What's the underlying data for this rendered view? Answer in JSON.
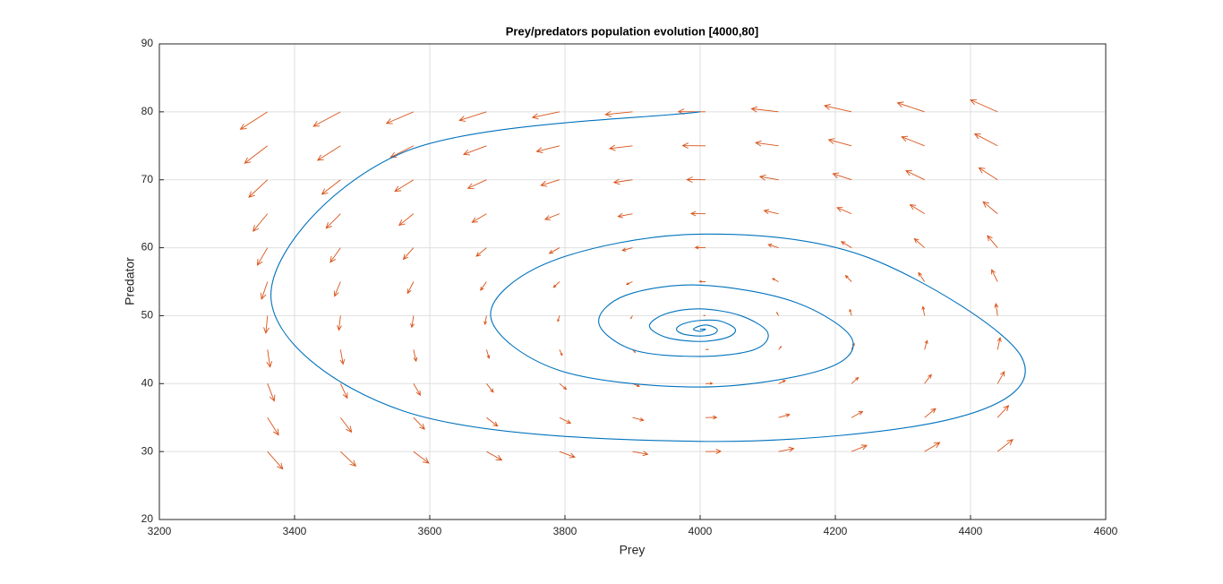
{
  "chart_data": {
    "type": "phase",
    "title": "Prey/predators population evolution [4000,80]",
    "xlabel": "Prey",
    "ylabel": "Predator",
    "xlim": [
      3200,
      4600
    ],
    "ylim": [
      20,
      90
    ],
    "xticks": [
      3200,
      3400,
      3600,
      3800,
      4000,
      4200,
      4400,
      4600
    ],
    "yticks": [
      20,
      30,
      40,
      50,
      60,
      70,
      80,
      90
    ],
    "grid": true,
    "trajectory": {
      "color": "#0072bd",
      "x": [
        4000,
        3560,
        3365,
        3560,
        4000,
        4380,
        4475,
        4250,
        4000,
        3780,
        3690,
        3790,
        4000,
        4180,
        4225,
        4140,
        4000,
        3890,
        3850,
        3900,
        4000,
        4080,
        4100,
        4060,
        4000,
        3950,
        3925,
        3950,
        4000,
        4040,
        4052,
        4030,
        4000,
        3975,
        3965,
        3975,
        4000,
        4020,
        4025,
        4012,
        4000,
        3990,
        4000,
        4008,
        4000
      ],
      "y": [
        80,
        74,
        53,
        36,
        31.5,
        35,
        44,
        58.5,
        62,
        58,
        50,
        42,
        39.5,
        42,
        46.5,
        52,
        54.5,
        53,
        49,
        45,
        44,
        45,
        47.5,
        50,
        51,
        50.3,
        48.5,
        46.8,
        46.2,
        46.8,
        48,
        49.2,
        49.3,
        48.8,
        48,
        47.3,
        47,
        47.3,
        48,
        48.6,
        48.5,
        48,
        47.7,
        48,
        48
      ]
    },
    "quiver": {
      "color": "#d95319",
      "x": [
        3360,
        3468,
        3576,
        3684,
        3792,
        3900,
        4008,
        4116,
        4224,
        4332,
        4440
      ],
      "y": [
        30,
        35,
        40,
        45,
        50,
        55,
        60,
        65,
        70,
        75,
        80
      ],
      "u": [
        [
          22.5,
          22.5,
          22.5,
          22.5,
          22.5,
          22.5,
          22.5,
          22.5,
          22.5,
          22.5,
          22.5
        ],
        [
          16.3,
          16.3,
          16.3,
          16.3,
          16.3,
          16.3,
          16.3,
          16.3,
          16.3,
          16.3,
          16.3
        ],
        [
          10,
          10,
          10,
          10,
          10,
          10,
          10,
          10,
          10,
          10,
          10
        ],
        [
          3.8,
          3.8,
          3.8,
          3.8,
          3.8,
          3.8,
          3.8,
          3.8,
          3.8,
          3.8,
          3.8
        ],
        [
          -2.5,
          -2.5,
          -2.5,
          -2.5,
          -2.5,
          -2.5,
          -2.5,
          -2.5,
          -2.5,
          -2.5,
          -2.5
        ],
        [
          -8.8,
          -8.8,
          -8.8,
          -8.8,
          -8.8,
          -8.8,
          -8.8,
          -8.8,
          -8.8,
          -8.8,
          -8.8
        ],
        [
          -15,
          -15,
          -15,
          -15,
          -15,
          -15,
          -15,
          -15,
          -15,
          -15,
          -15
        ],
        [
          -21.3,
          -21.3,
          -21.3,
          -21.3,
          -21.3,
          -21.3,
          -21.3,
          -21.3,
          -21.3,
          -21.3,
          -21.3
        ],
        [
          -27.5,
          -27.5,
          -27.5,
          -27.5,
          -27.5,
          -27.5,
          -27.5,
          -27.5,
          -27.5,
          -27.5,
          -27.5
        ],
        [
          -33.8,
          -33.8,
          -33.8,
          -33.8,
          -33.8,
          -33.8,
          -33.8,
          -33.8,
          -33.8,
          -33.8,
          -33.8
        ],
        [
          -40,
          -40,
          -40,
          -40,
          -40,
          -40,
          -40,
          -40,
          -40,
          -40,
          -40
        ]
      ],
      "v": [
        [
          -2.56,
          -2.13,
          -1.7,
          -1.26,
          -0.83,
          -0.4,
          0.03,
          0.46,
          0.9,
          1.33,
          1.76
        ],
        [
          -2.56,
          -2.13,
          -1.7,
          -1.26,
          -0.83,
          -0.4,
          0.03,
          0.46,
          0.9,
          1.33,
          1.76
        ],
        [
          -2.56,
          -2.13,
          -1.7,
          -1.26,
          -0.83,
          -0.4,
          0.03,
          0.46,
          0.9,
          1.33,
          1.76
        ],
        [
          -2.56,
          -2.13,
          -1.7,
          -1.26,
          -0.83,
          -0.4,
          0.03,
          0.46,
          0.9,
          1.33,
          1.76
        ],
        [
          -2.56,
          -2.13,
          -1.7,
          -1.26,
          -0.83,
          -0.4,
          0.03,
          0.46,
          0.9,
          1.33,
          1.76
        ],
        [
          -2.56,
          -2.13,
          -1.7,
          -1.26,
          -0.83,
          -0.4,
          0.03,
          0.46,
          0.9,
          1.33,
          1.76
        ],
        [
          -2.56,
          -2.13,
          -1.7,
          -1.26,
          -0.83,
          -0.4,
          0.03,
          0.46,
          0.9,
          1.33,
          1.76
        ],
        [
          -2.56,
          -2.13,
          -1.7,
          -1.26,
          -0.83,
          -0.4,
          0.03,
          0.46,
          0.9,
          1.33,
          1.76
        ],
        [
          -2.56,
          -2.13,
          -1.7,
          -1.26,
          -0.83,
          -0.4,
          0.03,
          0.46,
          0.9,
          1.33,
          1.76
        ],
        [
          -2.56,
          -2.13,
          -1.7,
          -1.26,
          -0.83,
          -0.4,
          0.03,
          0.46,
          0.9,
          1.33,
          1.76
        ],
        [
          -2.56,
          -2.13,
          -1.7,
          -1.26,
          -0.83,
          -0.4,
          0.03,
          0.46,
          0.9,
          1.33,
          1.76
        ]
      ]
    }
  }
}
